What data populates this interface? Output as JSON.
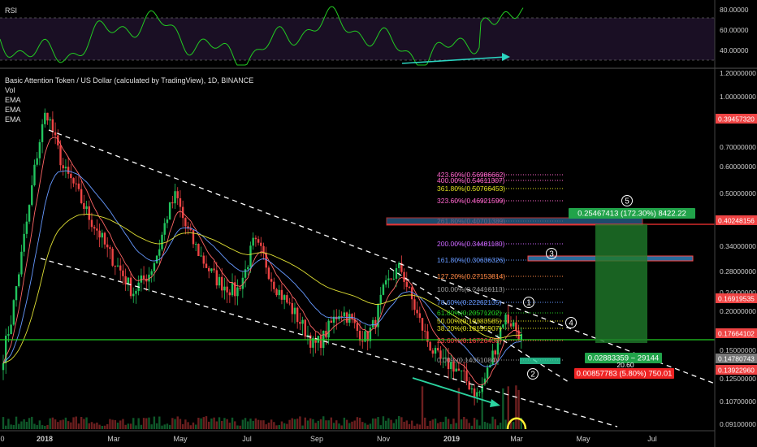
{
  "header": {
    "title": "Basic Attention Token / US Dollar (calculated by TradingView), 1D, BINANCE",
    "indicators": [
      "Vol",
      "EMA",
      "EMA",
      "EMA"
    ],
    "rsi_label": "RSI"
  },
  "colors": {
    "background": "#000000",
    "bull": "#22c55e",
    "bear": "#ef4444",
    "rsi": "#22cc22",
    "support": "#22cc22",
    "channel": "#ffffff",
    "fib_pink": "#ff66cc",
    "fib_yellow": "#dddd22",
    "fib_blue": "#6699ff"
  },
  "annotations": {
    "wave_labels": [
      "1",
      "2",
      "3",
      "4",
      "5"
    ],
    "target_box_label": "0.25467413 (172.30%) 8422.22",
    "entry_box_label": "0.02883359 ~ 29144",
    "stop_box_label": "0.00857783 (5.80%) 750.01",
    "extra_label": "20.60"
  },
  "fib_levels": [
    {
      "text": "423.60%(0.56986662)",
      "color": "#ff66cc"
    },
    {
      "text": "400.00%(0.54611307)",
      "color": "#ff66cc"
    },
    {
      "text": "361.80%(0.50766453)",
      "color": "#dddd22"
    },
    {
      "text": "323.60%(0.46921599)",
      "color": "#ff66cc"
    },
    {
      "text": "261.80%(0.40701389)",
      "color": "#ff4444"
    },
    {
      "text": "200.00%(0.34481180)",
      "color": "#cc66ff"
    },
    {
      "text": "161.80%(0.30636326)",
      "color": "#6699ff"
    },
    {
      "text": "127.20%(0.27153814)",
      "color": "#ff8844"
    },
    {
      "text": "100.00%(0.24416113)",
      "color": "#999999"
    },
    {
      "text": "78.60%(0.22262135)",
      "color": "#6699ff"
    },
    {
      "text": "61.80%(0.20571202)",
      "color": "#22cc22"
    },
    {
      "text": "50.00%(0.19383585)",
      "color": "#dddd22"
    },
    {
      "text": "38.20%(0.18195907)",
      "color": "#dddd22"
    },
    {
      "text": "23.60%(0.16726408)",
      "color": "#ff4444"
    },
    {
      "text": "0.00%(0.14351084)",
      "color": "#999999"
    }
  ],
  "chart_data": {
    "type": "candlestick",
    "x_ticks": [
      "0",
      "2018",
      "Mar",
      "May",
      "Jul",
      "Sep",
      "Nov",
      "2019",
      "Mar",
      "May",
      "Jul"
    ],
    "rsi_ticks": [
      "80.00000",
      "60.00000",
      "40.00000"
    ],
    "price_ticks": [
      "1.20000000",
      "1.00000000",
      "0.70000000",
      "0.60000000",
      "0.50000000",
      "0.40000000",
      "0.34000000",
      "0.28000000",
      "0.24000000",
      "0.20000000",
      "0.15000000",
      "0.12500000",
      "0.10700000",
      "0.09100000"
    ],
    "price_tags": [
      {
        "text": "0.39457320",
        "color": "#ef4444"
      },
      {
        "text": "0.40248156",
        "color": "#ef4444"
      },
      {
        "text": "0.16919535",
        "color": "#ef4444"
      },
      {
        "text": "0.17664102",
        "color": "#ef4444"
      },
      {
        "text": "0.14780743",
        "color": "#777777"
      },
      {
        "text": "0.13922960",
        "color": "#ef4444"
      }
    ],
    "price_path": [
      0.15,
      0.2,
      0.3,
      0.45,
      0.7,
      0.95,
      0.75,
      0.6,
      0.55,
      0.48,
      0.42,
      0.38,
      0.33,
      0.3,
      0.27,
      0.24,
      0.26,
      0.28,
      0.33,
      0.43,
      0.5,
      0.4,
      0.35,
      0.31,
      0.28,
      0.26,
      0.25,
      0.24,
      0.28,
      0.35,
      0.32,
      0.27,
      0.24,
      0.22,
      0.2,
      0.18,
      0.16,
      0.17,
      0.19,
      0.21,
      0.2,
      0.18,
      0.17,
      0.19,
      0.24,
      0.27,
      0.29,
      0.24,
      0.2,
      0.17,
      0.15,
      0.14,
      0.14,
      0.13,
      0.12,
      0.11,
      0.13,
      0.16,
      0.2,
      0.19,
      0.17
    ]
  }
}
